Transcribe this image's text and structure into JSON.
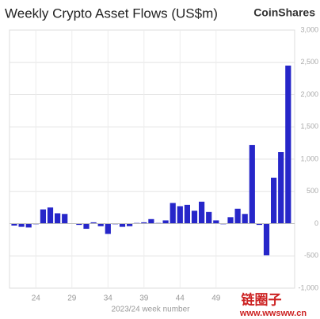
{
  "chart_data": {
    "type": "bar",
    "title": "Weekly Crypto Asset Flows (US$m)",
    "brand": "CoinShares",
    "x_label": "2023/24 week number",
    "watermark": {
      "title": "链圈子",
      "url": "www.wwsww.cn"
    },
    "categories": [
      null,
      null,
      null,
      "24",
      null,
      null,
      null,
      null,
      "29",
      null,
      null,
      null,
      null,
      "34",
      null,
      null,
      null,
      null,
      "39",
      null,
      null,
      null,
      null,
      "44",
      null,
      null,
      null,
      null,
      "49",
      null,
      null,
      null,
      null,
      null,
      null,
      null,
      null,
      null,
      null
    ],
    "values": [
      -30,
      -50,
      -60,
      -10,
      220,
      250,
      160,
      150,
      0,
      -20,
      -80,
      20,
      -40,
      -160,
      -10,
      -50,
      -40,
      10,
      20,
      70,
      10,
      50,
      320,
      270,
      290,
      200,
      340,
      180,
      50,
      -10,
      100,
      230,
      150,
      1220,
      -20,
      -490,
      710,
      1110,
      2450
    ],
    "color": "#2626c9",
    "ylim": [
      -1000,
      3000
    ],
    "yticks": [
      {
        "value": -1000,
        "label": "-1,000"
      },
      -500,
      0,
      500,
      {
        "value": 1000,
        "label": "1,000"
      },
      {
        "value": 1500,
        "label": "1,500"
      },
      {
        "value": 2000,
        "label": "2,000"
      },
      {
        "value": 2500,
        "label": "2,500"
      },
      {
        "value": 3000,
        "label": "3,000"
      }
    ],
    "grid": true
  }
}
